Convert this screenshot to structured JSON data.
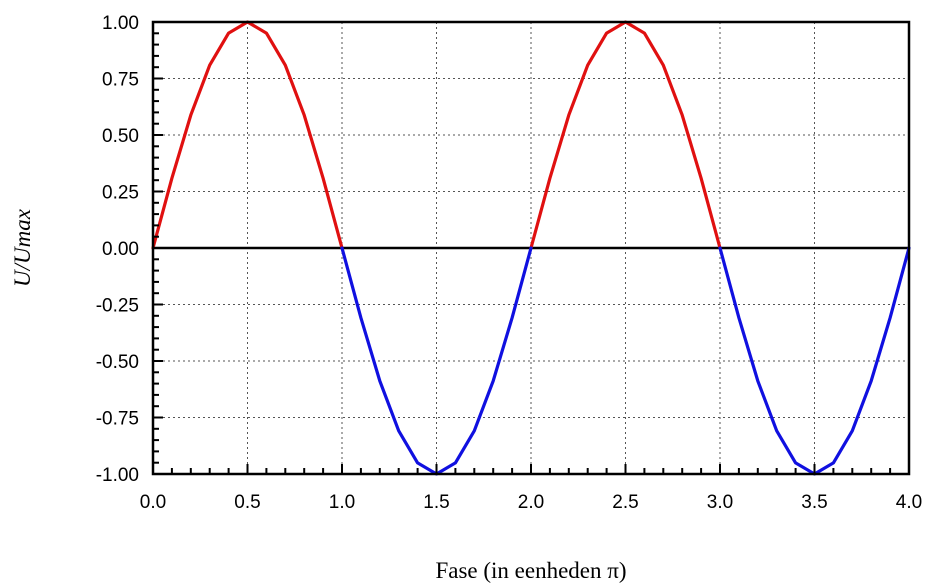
{
  "chart_data": {
    "type": "line",
    "title": "",
    "xlabel": "Fase (in eenheden π)",
    "ylabel": "U/Umax",
    "xlim": [
      0,
      4
    ],
    "ylim": [
      -1,
      1
    ],
    "grid": true,
    "x_ticks": [
      0,
      0.5,
      1,
      1.5,
      2,
      2.5,
      3,
      3.5,
      4
    ],
    "x_tick_labels": [
      "0.0",
      "0.5",
      "1.0",
      "1.5",
      "2.0",
      "2.5",
      "3.0",
      "3.5",
      "4.0"
    ],
    "y_ticks": [
      1,
      0.75,
      0.5,
      0.25,
      0,
      -0.25,
      -0.5,
      -0.75,
      -1
    ],
    "y_tick_labels": [
      "1.00",
      "0.75",
      "0.50",
      "0.25",
      "0.00",
      "-0.25",
      "-0.50",
      "-0.75",
      "-1.00"
    ],
    "series": [
      {
        "color": "#e01010",
        "segments": [
          {
            "x": [
              0,
              0.1,
              0.2,
              0.3,
              0.4,
              0.5,
              0.6,
              0.7,
              0.8,
              0.9,
              1.0
            ],
            "y": [
              0,
              0.309,
              0.588,
              0.809,
              0.951,
              1.0,
              0.951,
              0.809,
              0.588,
              0.309,
              0
            ]
          },
          {
            "x": [
              2.0,
              2.1,
              2.2,
              2.3,
              2.4,
              2.5,
              2.6,
              2.7,
              2.8,
              2.9,
              3.0
            ],
            "y": [
              0,
              0.309,
              0.588,
              0.809,
              0.951,
              1.0,
              0.951,
              0.809,
              0.588,
              0.309,
              0
            ]
          }
        ]
      },
      {
        "color": "#1010e0",
        "segments": [
          {
            "x": [
              1.0,
              1.1,
              1.2,
              1.3,
              1.4,
              1.5,
              1.6,
              1.7,
              1.8,
              1.9,
              2.0
            ],
            "y": [
              0,
              -0.309,
              -0.588,
              -0.809,
              -0.951,
              -1.0,
              -0.951,
              -0.809,
              -0.588,
              -0.309,
              0
            ]
          },
          {
            "x": [
              3.0,
              3.1,
              3.2,
              3.3,
              3.4,
              3.5,
              3.6,
              3.7,
              3.8,
              3.9,
              4.0
            ],
            "y": [
              0,
              -0.309,
              -0.588,
              -0.809,
              -0.951,
              -1.0,
              -0.951,
              -0.809,
              -0.588,
              -0.309,
              0
            ]
          }
        ]
      }
    ]
  }
}
